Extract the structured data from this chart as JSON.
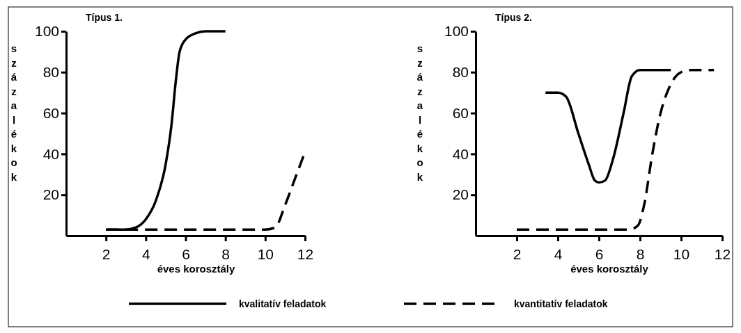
{
  "chart_data": [
    {
      "type": "line",
      "title": "Típus 1.",
      "xlabel": "éves korosztály",
      "ylabel": "százalékok",
      "xlim": [
        0,
        12
      ],
      "ylim": [
        0,
        100
      ],
      "xticks": [
        2,
        4,
        6,
        8,
        10,
        12
      ],
      "yticks": [
        20,
        40,
        60,
        80,
        100
      ],
      "grid": false,
      "legend": "bottom",
      "series": [
        {
          "name": "kvalitatív feladatok",
          "color": "#000000",
          "line_style": "solid",
          "x": [
            2,
            3,
            3.5,
            4,
            4.5,
            5,
            5.3,
            5.5,
            5.7,
            6,
            6.5,
            7,
            8
          ],
          "values": [
            3,
            3,
            4,
            8,
            17,
            35,
            55,
            75,
            90,
            96,
            99,
            100,
            100
          ]
        },
        {
          "name": "kvantitatív feladatok",
          "color": "#000000",
          "line_style": "dashed",
          "x": [
            2,
            10,
            10.5,
            11,
            11.5,
            12
          ],
          "values": [
            3,
            3,
            4,
            15,
            28,
            41
          ]
        }
      ]
    },
    {
      "type": "line",
      "title": "Típus 2.",
      "xlabel": "éves korosztály",
      "ylabel": "százalékok",
      "xlim": [
        0,
        12
      ],
      "ylim": [
        0,
        100
      ],
      "xticks": [
        2,
        4,
        6,
        8,
        10,
        12
      ],
      "yticks": [
        20,
        40,
        60,
        80,
        100
      ],
      "grid": false,
      "series": [
        {
          "color": "#000000",
          "line_style": "solid",
          "x": [
            3.4,
            4,
            4.4,
            5,
            5.5,
            5.8,
            6,
            6.3,
            6.7,
            7.2,
            7.6,
            8,
            9.5
          ],
          "values": [
            70,
            70,
            68,
            50,
            35,
            27,
            26,
            27,
            38,
            60,
            78,
            81,
            81
          ]
        },
        {
          "color": "#000000",
          "line_style": "dashed",
          "x": [
            2,
            7.5,
            7.9,
            8.2,
            8.6,
            9,
            9.4,
            10,
            10.5,
            11.6
          ],
          "values": [
            3,
            3,
            5,
            15,
            40,
            60,
            72,
            80,
            81,
            81
          ]
        }
      ]
    }
  ]
}
